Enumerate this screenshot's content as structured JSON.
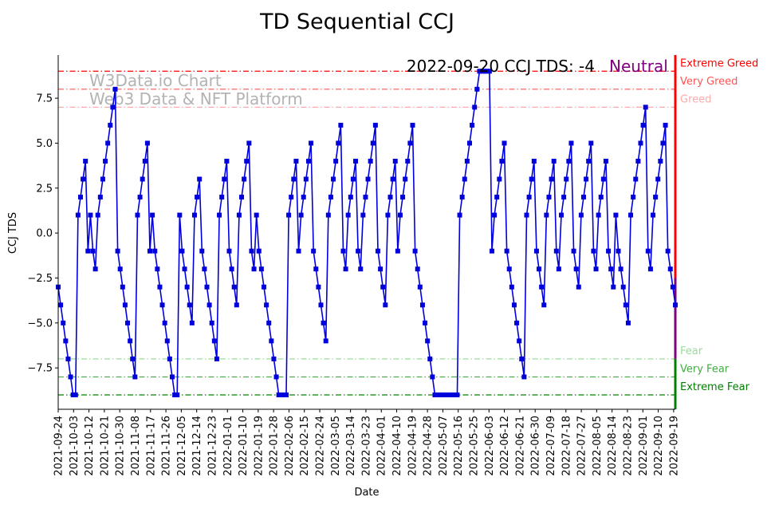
{
  "chart_data": {
    "type": "line",
    "title": "TD Sequential CCJ",
    "xlabel": "Date",
    "ylabel": "CCJ TDS",
    "ylim": [
      -9.8,
      9.9
    ],
    "yticks": [
      -7.5,
      -5.0,
      -2.5,
      0.0,
      2.5,
      5.0,
      7.5
    ],
    "ytick_labels": [
      "−7.5",
      "−5.0",
      "−2.5",
      "0.0",
      "2.5",
      "5.0",
      "7.5"
    ],
    "xtick_labels": [
      "2021-09-24",
      "2021-10-03",
      "2021-10-12",
      "2021-10-21",
      "2021-10-30",
      "2021-11-08",
      "2021-11-17",
      "2021-11-26",
      "2021-12-05",
      "2021-12-14",
      "2021-12-23",
      "2022-01-01",
      "2022-01-10",
      "2022-01-19",
      "2022-01-28",
      "2022-02-06",
      "2022-02-15",
      "2022-02-24",
      "2022-03-05",
      "2022-03-14",
      "2022-03-23",
      "2022-04-01",
      "2022-04-10",
      "2022-04-19",
      "2022-04-28",
      "2022-05-07",
      "2022-05-16",
      "2022-05-25",
      "2022-06-03",
      "2022-06-12",
      "2022-06-21",
      "2022-06-30",
      "2022-07-09",
      "2022-07-18",
      "2022-07-27",
      "2022-08-05",
      "2022-08-14",
      "2022-08-23",
      "2022-09-01",
      "2022-09-10",
      "2022-09-19"
    ],
    "x_start": "2021-09-24",
    "x_end": "2022-09-20",
    "series": [
      {
        "values": [
          -3,
          -4,
          -5,
          -6,
          -7,
          -8,
          -9,
          -9,
          1,
          2,
          3,
          4,
          -1,
          1,
          -1,
          -2,
          1,
          2,
          3,
          4,
          5,
          6,
          7,
          8,
          -1,
          -2,
          -3,
          -4,
          -5,
          -6,
          -7,
          -8,
          1,
          2,
          3,
          4,
          5,
          -1,
          1,
          -1,
          -2,
          -3,
          -4,
          -5,
          -6,
          -7,
          -8,
          -9,
          -9,
          1,
          -1,
          -2,
          -3,
          -4,
          -5,
          1,
          2,
          3,
          -1,
          -2,
          -3,
          -4,
          -5,
          -6,
          -7,
          1,
          2,
          3,
          4,
          -1,
          -2,
          -3,
          -4,
          1,
          2,
          3,
          4,
          5,
          -1,
          -2,
          1,
          -1,
          -2,
          -3,
          -4,
          -5,
          -6,
          -7,
          -8,
          -9,
          -9,
          -9,
          -9,
          1,
          2,
          3,
          4,
          -1,
          1,
          2,
          3,
          4,
          5,
          -1,
          -2,
          -3,
          -4,
          -5,
          -6,
          1,
          2,
          3,
          4,
          5,
          6,
          -1,
          -2,
          1,
          2,
          3,
          4,
          -1,
          -2,
          1,
          2,
          3,
          4,
          5,
          6,
          -1,
          -2,
          -3,
          -4,
          1,
          2,
          3,
          4,
          -1,
          1,
          2,
          3,
          4,
          5,
          6,
          -1,
          -2,
          -3,
          -4,
          -5,
          -6,
          -7,
          -8,
          -9,
          -9,
          -9,
          -9,
          -9,
          -9,
          -9,
          -9,
          -9,
          -9,
          1,
          2,
          3,
          4,
          5,
          6,
          7,
          8,
          9,
          9,
          9,
          9,
          9,
          -1,
          1,
          2,
          3,
          4,
          5,
          -1,
          -2,
          -3,
          -4,
          -5,
          -6,
          -7,
          -8,
          1,
          2,
          3,
          4,
          -1,
          -2,
          -3,
          -4,
          1,
          2,
          3,
          4,
          -1,
          -2,
          1,
          2,
          3,
          4,
          5,
          -1,
          -2,
          -3,
          1,
          2,
          3,
          4,
          5,
          -1,
          -2,
          1,
          2,
          3,
          4,
          -1,
          -2,
          -3,
          1,
          -1,
          -2,
          -3,
          -4,
          -5,
          1,
          2,
          3,
          4,
          5,
          6,
          7,
          -1,
          -2,
          1,
          2,
          3,
          4,
          5,
          6,
          -1,
          -2,
          -3,
          -4
        ],
        "color": "#0000dd"
      }
    ],
    "bands": [
      {
        "label": "Extreme Greed",
        "y": 9,
        "color": "#ff0000"
      },
      {
        "label": "Very Greed",
        "y": 8,
        "color": "#ff5555"
      },
      {
        "label": "Greed",
        "y": 7,
        "color": "#ffaaaa"
      },
      {
        "label": "Fear",
        "y": -7,
        "color": "#99dd99"
      },
      {
        "label": "Very Fear",
        "y": -8,
        "color": "#44aa44"
      },
      {
        "label": "Extreme Fear",
        "y": -9,
        "color": "#008000"
      }
    ],
    "side_bar_colors": [
      "#ff0000",
      "#800080",
      "#008000"
    ],
    "current_label": "2022-09-20 CCJ TDS: -4",
    "current_status": "Neutral",
    "current_status_color": "#800080",
    "watermark": [
      "W3Data.io Chart",
      "Web3 Data & NFT Platform"
    ],
    "grid": false
  }
}
